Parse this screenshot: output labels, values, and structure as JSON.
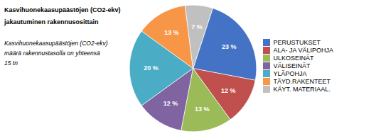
{
  "chart_data": {
    "type": "pie",
    "title": "Kasvihuonekaasupäästöjen (CO2-ekv)\njakautuminen rakennusosittain",
    "subtitle": "Kasvihuonekaasupäästöjen (CO2-ekv)\nmäärä rakennustasolla on yhteensä\n15 tn",
    "categories": [
      "PERUSTUKSET",
      "ALA- JA VÄLIPOHJA",
      "ULKOSEINÄT",
      "VÄLISEINÄT",
      "YLÄPOHJA",
      "TÄYD.RAKENTEET",
      "KÄYT. MATERIAAL."
    ],
    "values": [
      23,
      12,
      13,
      12,
      20,
      13,
      7
    ],
    "value_labels": [
      "23 %",
      "12 %",
      "13 %",
      "12 %",
      "20 %",
      "13 %",
      "7 %"
    ],
    "colors": [
      "#4472C4",
      "#C0504D",
      "#9BBB59",
      "#8064A2",
      "#4BACC6",
      "#F79646",
      "#C0C0C0"
    ],
    "data_labels": true,
    "legend": "right"
  }
}
